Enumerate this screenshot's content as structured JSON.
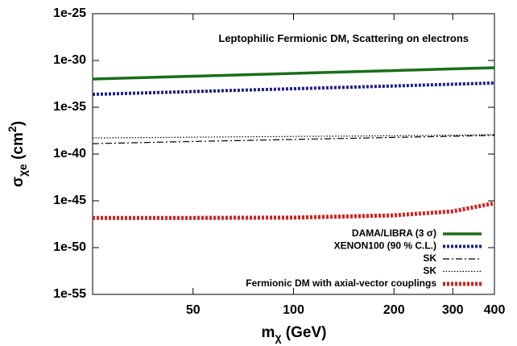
{
  "chart_data": {
    "type": "line",
    "annotation": "Leptophilic Fermionic DM, Scattering on electrons",
    "xlabel": [
      "m",
      "χ",
      " (GeV)"
    ],
    "ylabel": [
      "σ",
      "χe",
      " (cm",
      "2",
      ")"
    ],
    "x": [
      25,
      50,
      100,
      200,
      300,
      400
    ],
    "xlim": [
      25,
      400
    ],
    "xticks": [
      50,
      100,
      200,
      300,
      400
    ],
    "xscale": "log",
    "ylim": [
      1e-55,
      1e-25
    ],
    "yscale": "log",
    "yticks": [
      {
        "value": 1e-55,
        "label": "1e-55"
      },
      {
        "value": 1e-50,
        "label": "1e-50"
      },
      {
        "value": 1e-45,
        "label": "1e-45"
      },
      {
        "value": 1e-40,
        "label": "1e-40"
      },
      {
        "value": 1e-35,
        "label": "1e-35"
      },
      {
        "value": 1e-30,
        "label": "1e-30"
      },
      {
        "value": 1e-25,
        "label": "1e-25"
      }
    ],
    "legend": "lower right",
    "series": [
      {
        "name": "DAMA/LIBRA (3 σ)",
        "color": "#1a6e1a",
        "style": "solid",
        "width": 3.5,
        "values": [
          1.05e-32,
          2.1e-32,
          4.2e-32,
          8.3e-32,
          1.26e-31,
          1.66e-31
        ]
      },
      {
        "name": "XENON100 (90 % C.L.)",
        "color": "#1c1c8c",
        "style": "dotted",
        "width": 4,
        "values": [
          2.4e-34,
          4.8e-34,
          9.6e-34,
          1.9e-33,
          2.9e-33,
          3.9e-33
        ]
      },
      {
        "name": "SK",
        "color": "#000000",
        "style": "dashdot",
        "width": 1.2,
        "values": [
          1.3e-39,
          2.2e-39,
          3.6e-39,
          6e-39,
          8e-39,
          1e-38
        ]
      },
      {
        "name": "SK",
        "color": "#000000",
        "style": "fine",
        "width": 1.2,
        "values": [
          5.2e-39,
          6.3e-39,
          7.5e-39,
          9e-39,
          1.05e-38,
          1.2e-38
        ]
      },
      {
        "name": "Fermionic DM with axial-vector couplings",
        "color": "#d42020",
        "style": "dotted",
        "width": 5,
        "values": [
          1.5e-47,
          1.5e-47,
          1.6e-47,
          2.8e-47,
          7.6e-47,
          5.5e-46
        ]
      }
    ]
  }
}
